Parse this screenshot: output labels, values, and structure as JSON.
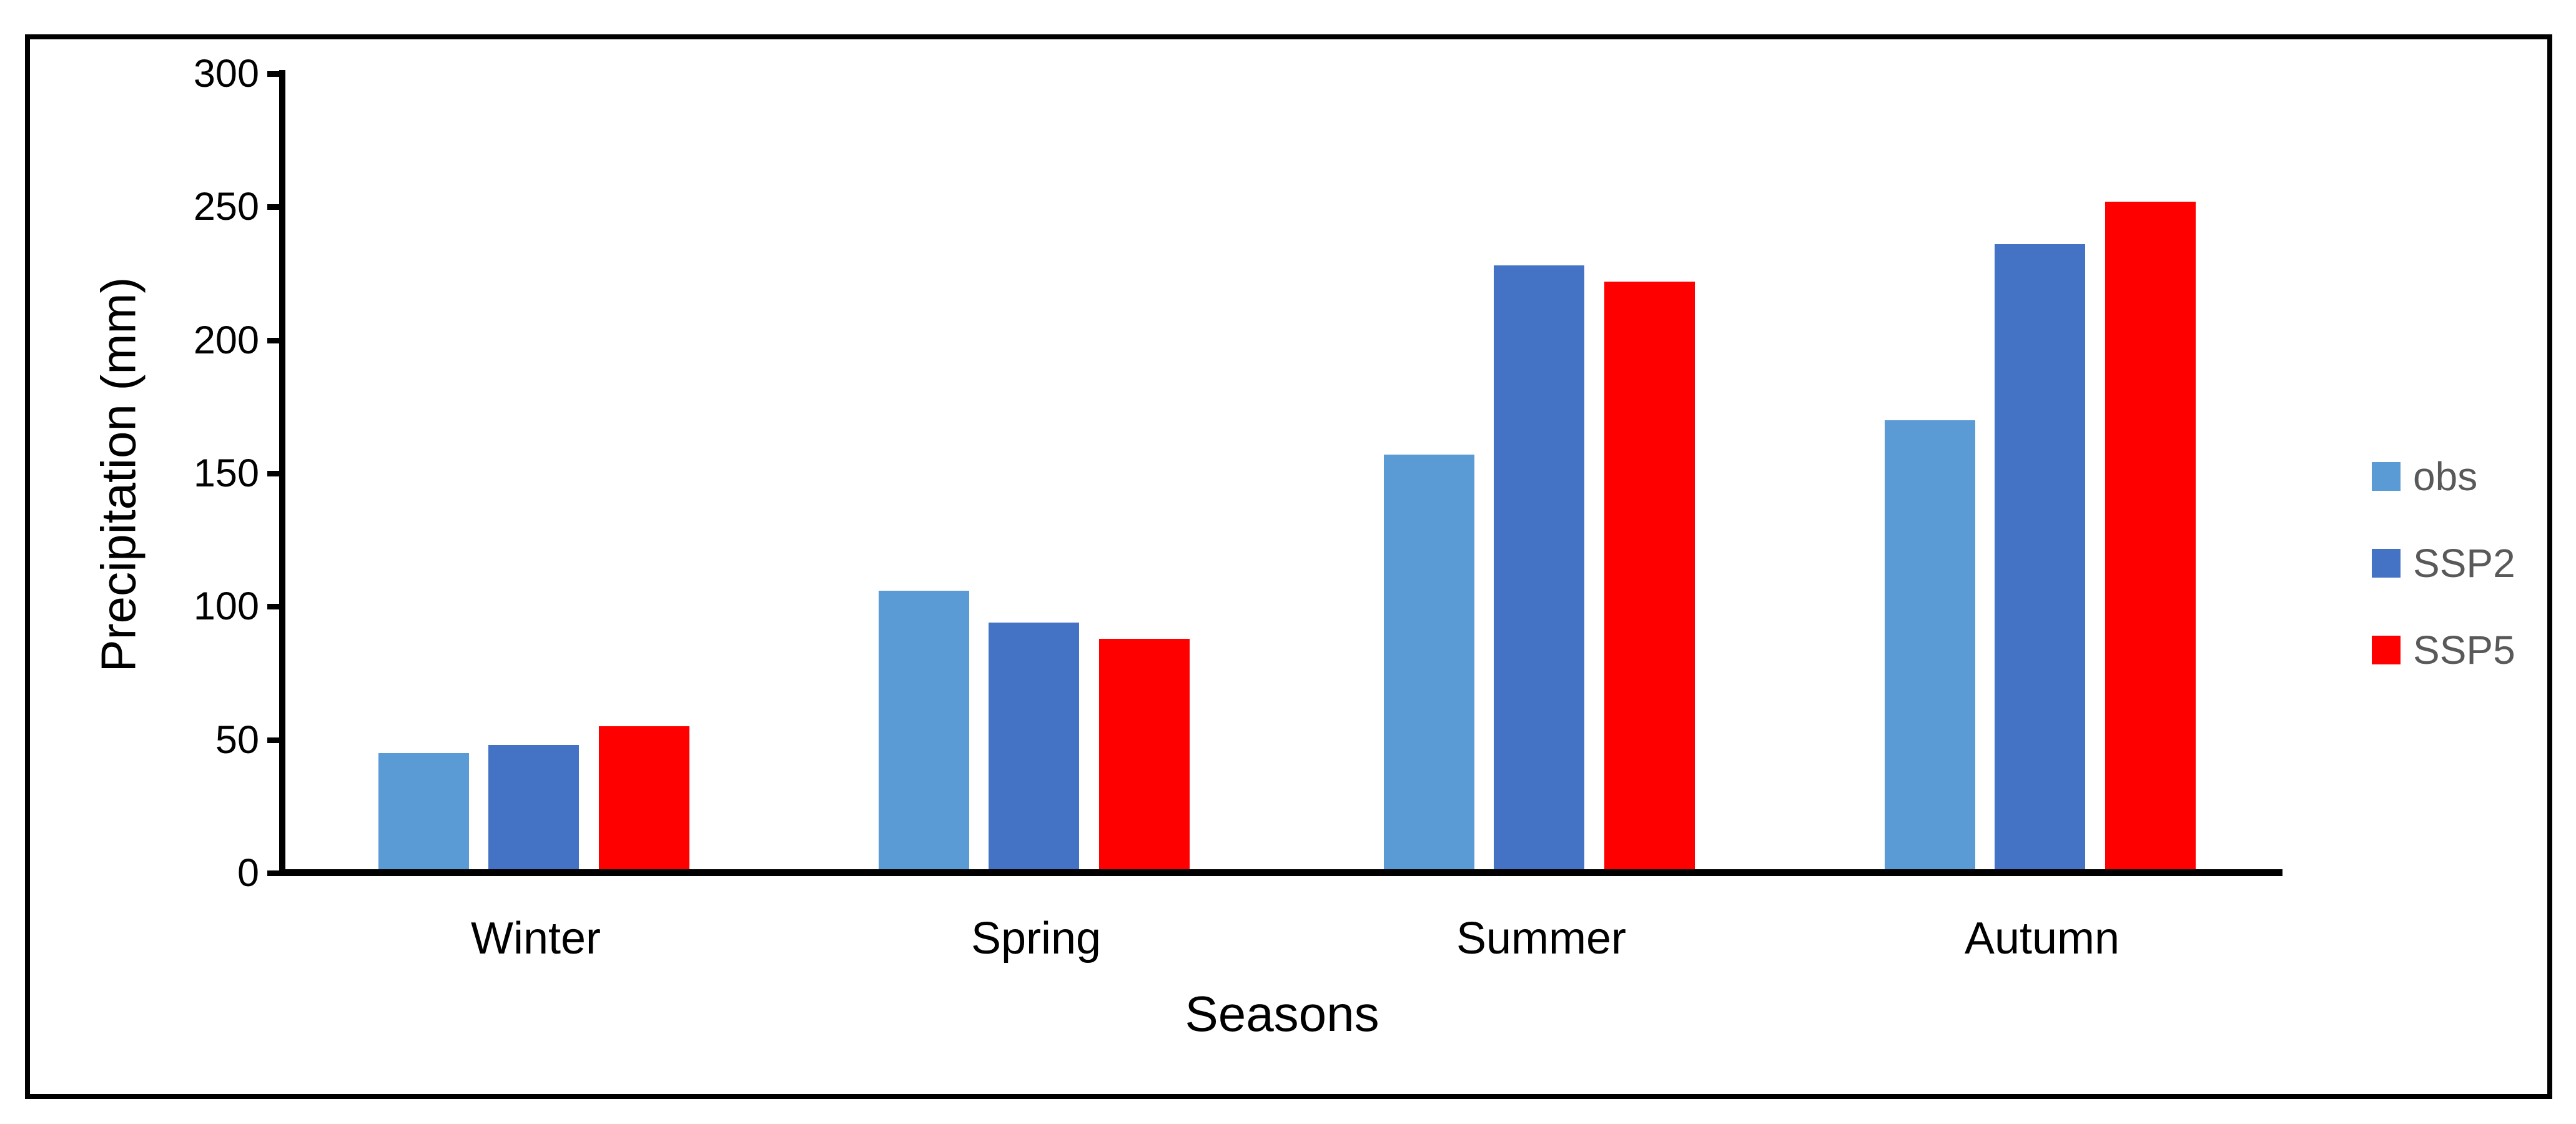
{
  "chart_data": {
    "type": "bar",
    "title": "",
    "categories": [
      "Winter",
      "Spring",
      "Summer",
      "Autumn"
    ],
    "series": [
      {
        "name": "obs",
        "color": "#5B9BD5",
        "values": [
          45,
          106,
          157,
          170
        ]
      },
      {
        "name": "SSP2",
        "color": "#4472C4",
        "values": [
          48,
          94,
          228,
          236
        ]
      },
      {
        "name": "SSP5",
        "color": "#FF0000",
        "values": [
          55,
          88,
          222,
          252
        ]
      }
    ],
    "xlabel": "Seasons",
    "ylabel": "Precipitation (mm)",
    "ylim": [
      0,
      300
    ],
    "ytick_step": 50,
    "yticks": [
      "0",
      "50",
      "100",
      "150",
      "200",
      "250",
      "300"
    ],
    "grid": false,
    "legend_position": "right",
    "legend": [
      "obs",
      "SSP2",
      "SSP5"
    ]
  },
  "colors": {
    "axis": "#000000",
    "border": "#000000",
    "background": "#FFFFFF",
    "legend_text": "#595959"
  }
}
